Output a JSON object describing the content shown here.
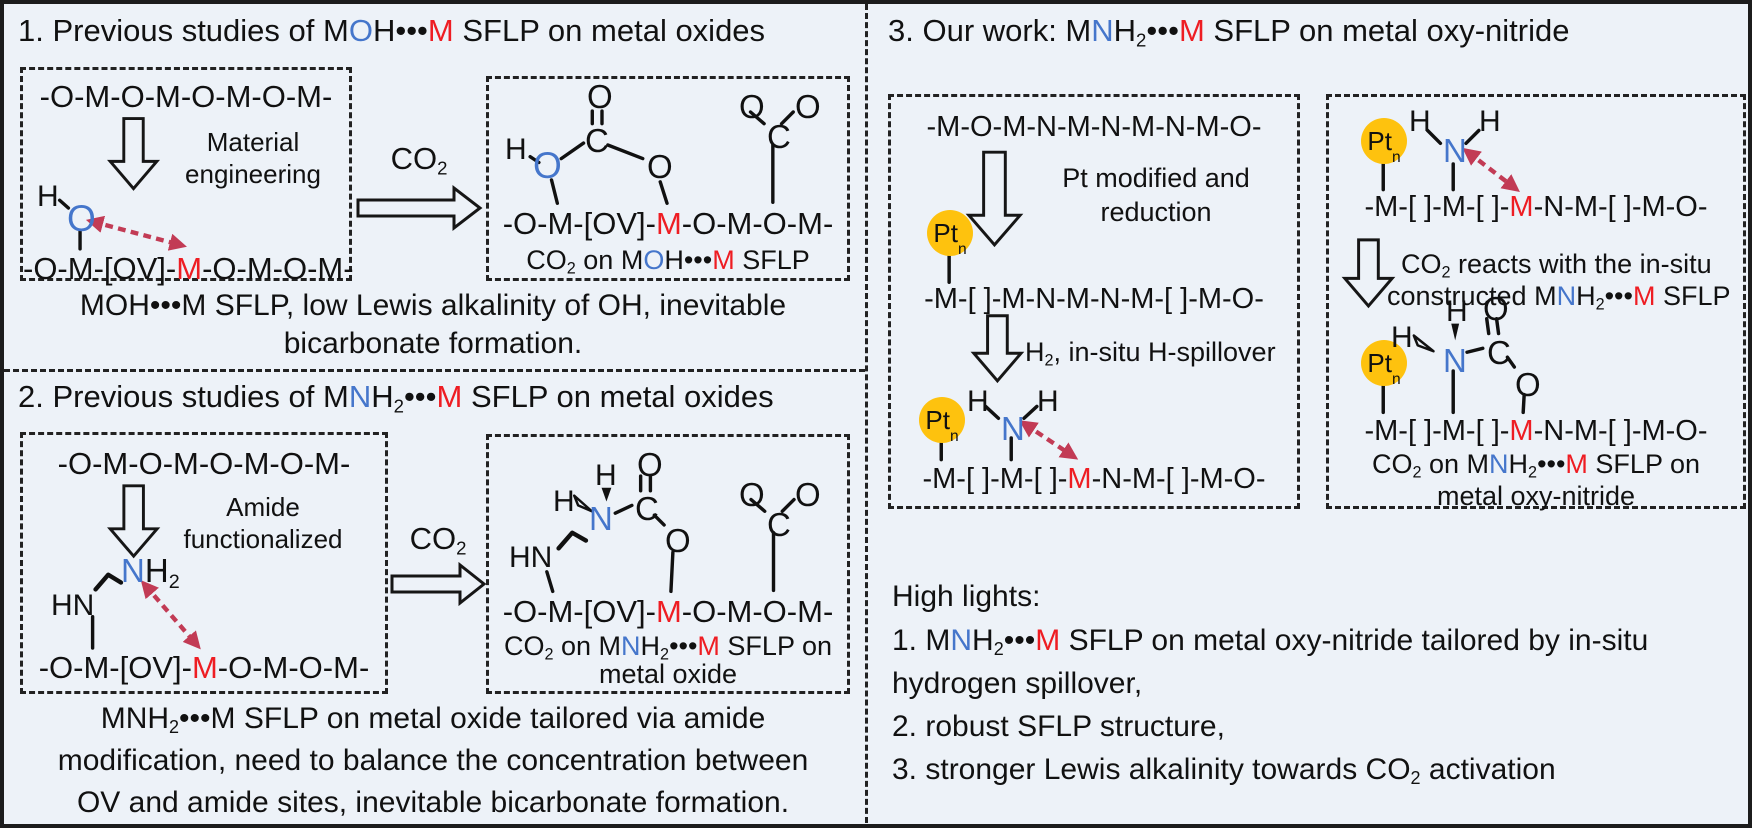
{
  "colors": {
    "background": "#edf2f8",
    "ink": "#111111",
    "nitrogen_oxygen_blue": "#4576cb",
    "metal_red": "#ee1d23",
    "interaction_arrow": "#c23b55",
    "pt_cluster_yellow": "#fec20e"
  },
  "atoms": {
    "H": "H",
    "C": "C",
    "O": "O",
    "N": "N",
    "HN": "HN",
    "M": "M"
  },
  "labels": {
    "ptn": [
      {
        "t": "Pt"
      },
      {
        "t": "n",
        "c": "sub"
      }
    ],
    "co2": [
      {
        "t": "CO"
      },
      {
        "t": "2",
        "c": "sub"
      }
    ],
    "nh2": [
      {
        "t": "N",
        "c": "b"
      },
      {
        "t": "H"
      },
      {
        "t": "2",
        "c": "sub"
      }
    ]
  },
  "chains": {
    "oxide": "-O-M-O-M-O-M-O-M-",
    "ov": [
      {
        "t": "-O-M-[OV]-"
      },
      {
        "t": "M",
        "c": "r"
      },
      {
        "t": "-O-M-O-M-"
      }
    ],
    "oxynitride": "-M-O-M-N-M-N-M-N-M-O-",
    "pt_modified": "-M-[ ]-M-N-M-N-M-[ ]-M-O-",
    "sflp": [
      {
        "t": "-M-[ ]-M-[ ]-"
      },
      {
        "t": "M",
        "c": "r"
      },
      {
        "t": "-N-M-[ ]-M-O-"
      }
    ]
  },
  "panel1": {
    "title": [
      {
        "t": "1. Previous studies of M"
      },
      {
        "t": "O",
        "c": "b"
      },
      {
        "t": "H•••"
      },
      {
        "t": "M",
        "c": "r"
      },
      {
        "t": " SFLP on metal oxides"
      }
    ],
    "arrow_label_1": "Material",
    "arrow_label_2": "engineering",
    "caption": [
      {
        "t": "CO"
      },
      {
        "t": "2",
        "c": "sub"
      },
      {
        "t": " on M"
      },
      {
        "t": "O",
        "c": "b"
      },
      {
        "t": "H•••"
      },
      {
        "t": "M",
        "c": "r"
      },
      {
        "t": " SFLP"
      }
    ],
    "summary_1": "MOH•••M SFLP, low Lewis alkalinity of OH, inevitable",
    "summary_2": "bicarbonate formation."
  },
  "panel2": {
    "title": [
      {
        "t": "2. Previous studies of M"
      },
      {
        "t": "N",
        "c": "b"
      },
      {
        "t": "H"
      },
      {
        "t": "2",
        "c": "sub"
      },
      {
        "t": "•••"
      },
      {
        "t": "M",
        "c": "r"
      },
      {
        "t": " SFLP on metal oxides"
      }
    ],
    "arrow_label_1": "Amide",
    "arrow_label_2": "functionalized",
    "caption_1": [
      {
        "t": "CO"
      },
      {
        "t": "2",
        "c": "sub"
      },
      {
        "t": " on M"
      },
      {
        "t": "N",
        "c": "b"
      },
      {
        "t": "H"
      },
      {
        "t": "2",
        "c": "sub"
      },
      {
        "t": "•••"
      },
      {
        "t": "M",
        "c": "r"
      },
      {
        "t": " SFLP on"
      }
    ],
    "caption_2": "metal oxide",
    "summary_1": [
      {
        "t": "MNH"
      },
      {
        "t": "2",
        "c": "sub"
      },
      {
        "t": "•••M SFLP on metal oxide tailored via amide"
      }
    ],
    "summary_2": "modification, need to balance the concentration between",
    "summary_3": "OV and amide sites, inevitable bicarbonate formation."
  },
  "panel3": {
    "title": [
      {
        "t": "3. Our work: M"
      },
      {
        "t": "N",
        "c": "b"
      },
      {
        "t": "H"
      },
      {
        "t": "2",
        "c": "sub"
      },
      {
        "t": "•••"
      },
      {
        "t": "M",
        "c": "r"
      },
      {
        "t": " SFLP on metal oxy-nitride"
      }
    ],
    "arrow1_label_1": "Pt modified and",
    "arrow1_label_2": "reduction",
    "arrow2_label": [
      {
        "t": "H"
      },
      {
        "t": "2",
        "c": "sub"
      },
      {
        "t": ", in-situ H-spillover"
      }
    ],
    "arrow3_label_1": [
      {
        "t": "CO"
      },
      {
        "t": "2",
        "c": "sub"
      },
      {
        "t": " reacts with the in-situ"
      }
    ],
    "arrow3_label_2": [
      {
        "t": "constructed M"
      },
      {
        "t": "N",
        "c": "b"
      },
      {
        "t": "H"
      },
      {
        "t": "2",
        "c": "sub"
      },
      {
        "t": "•••"
      },
      {
        "t": "M",
        "c": "r"
      },
      {
        "t": " SFLP"
      }
    ],
    "caption_1": [
      {
        "t": "CO"
      },
      {
        "t": "2",
        "c": "sub"
      },
      {
        "t": " on M"
      },
      {
        "t": "N",
        "c": "b"
      },
      {
        "t": "H"
      },
      {
        "t": "2",
        "c": "sub"
      },
      {
        "t": "•••"
      },
      {
        "t": "M",
        "c": "r"
      },
      {
        "t": " SFLP on"
      }
    ],
    "caption_2": "metal oxy-nitride",
    "highlights_title": "High lights:",
    "highlight_1": [
      {
        "t": "1. M"
      },
      {
        "t": "N",
        "c": "b"
      },
      {
        "t": "H"
      },
      {
        "t": "2",
        "c": "sub"
      },
      {
        "t": "•••"
      },
      {
        "t": "M",
        "c": "r"
      },
      {
        "t": " SFLP on metal oxy-nitride tailored by in-situ"
      }
    ],
    "highlight_2": "hydrogen spillover,",
    "highlight_3": "2. robust SFLP structure,",
    "highlight_4": [
      {
        "t": "3. stronger Lewis alkalinity towards CO"
      },
      {
        "t": "2",
        "c": "sub"
      },
      {
        "t": " activation"
      }
    ]
  }
}
